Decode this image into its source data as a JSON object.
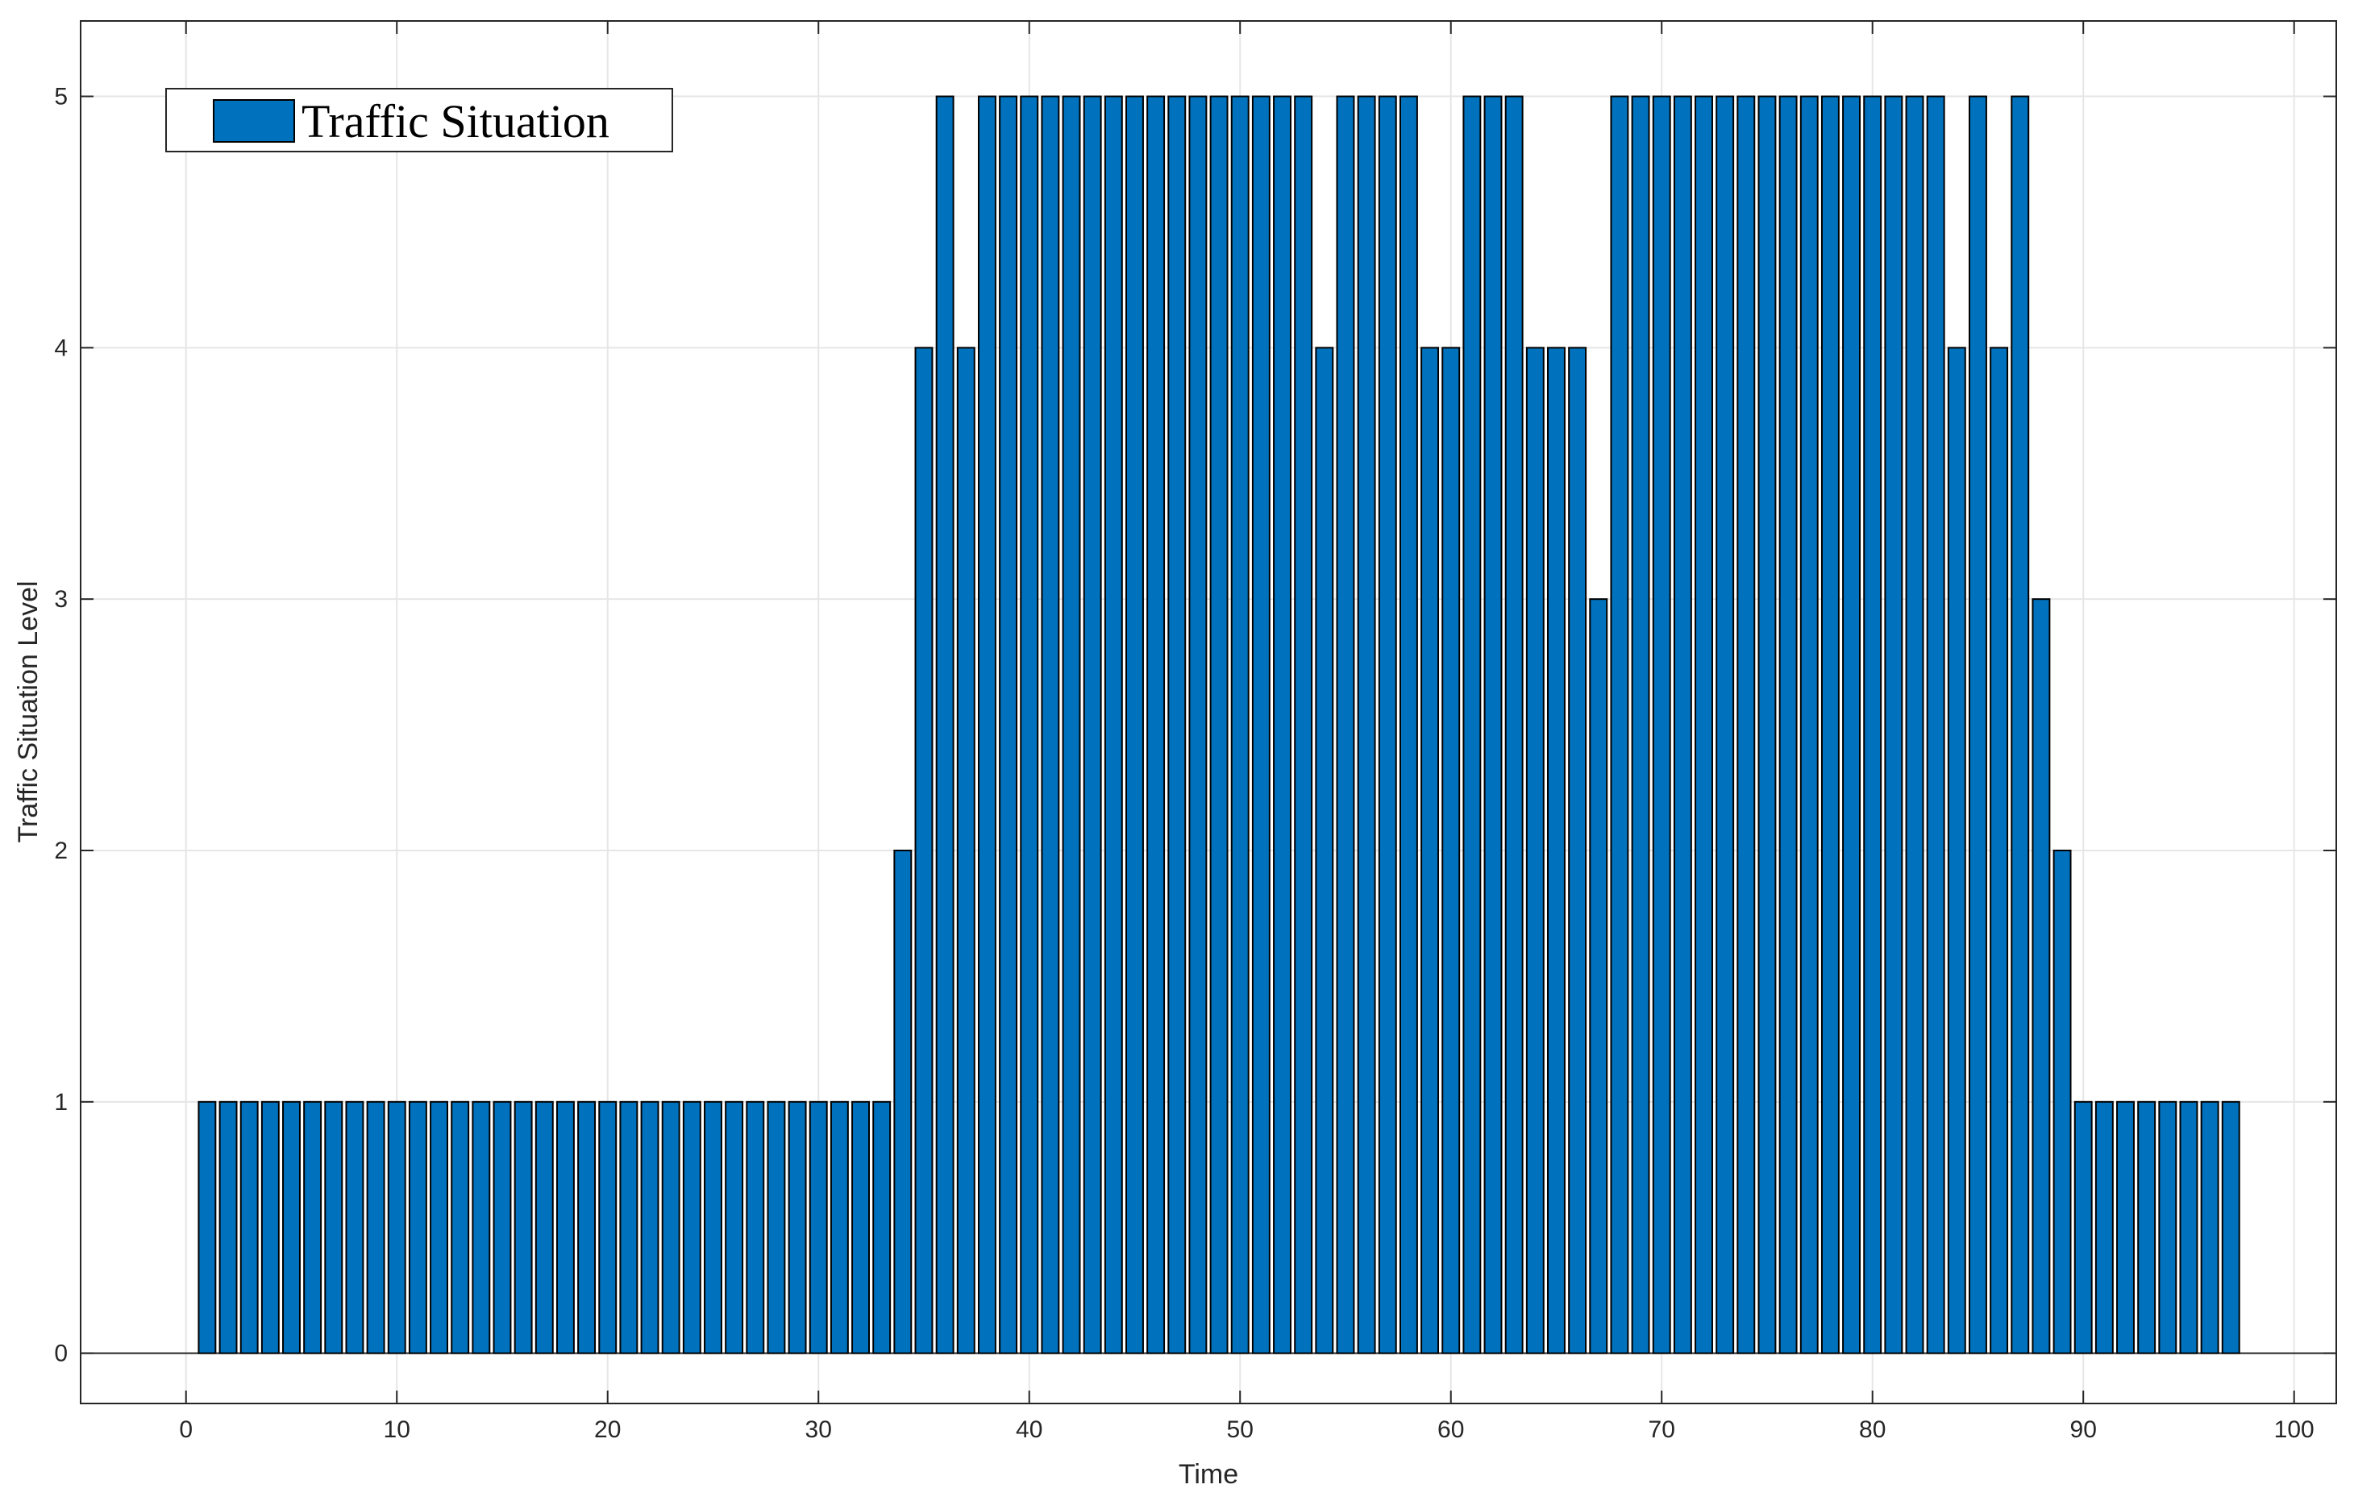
{
  "chart_data": {
    "type": "bar",
    "xlabel": "Time",
    "ylabel": "Traffic Situation Level",
    "xlim": [
      -5,
      102
    ],
    "ylim": [
      -0.2,
      5.3
    ],
    "xticks": [
      0,
      10,
      20,
      30,
      40,
      50,
      60,
      70,
      80,
      90,
      100
    ],
    "yticks": [
      0,
      1,
      2,
      3,
      4,
      5
    ],
    "grid": true,
    "legend": {
      "position": "top-left",
      "entries": [
        "Traffic Situation"
      ]
    },
    "series": [
      {
        "name": "Traffic Situation",
        "color": "#0072bd",
        "x": [
          1,
          2,
          3,
          4,
          5,
          6,
          7,
          8,
          9,
          10,
          11,
          12,
          13,
          14,
          15,
          16,
          17,
          18,
          19,
          20,
          21,
          22,
          23,
          24,
          25,
          26,
          27,
          28,
          29,
          30,
          31,
          32,
          33,
          34,
          35,
          36,
          37,
          38,
          39,
          40,
          41,
          42,
          43,
          44,
          45,
          46,
          47,
          48,
          49,
          50,
          51,
          52,
          53,
          54,
          55,
          56,
          57,
          58,
          59,
          60,
          61,
          62,
          63,
          64,
          65,
          66,
          67,
          68,
          69,
          70,
          71,
          72,
          73,
          74,
          75,
          76,
          77,
          78,
          79,
          80,
          81,
          82,
          83,
          84,
          85,
          86,
          87,
          88,
          89,
          90,
          91,
          92,
          93,
          94,
          95,
          96,
          97
        ],
        "values": [
          1,
          1,
          1,
          1,
          1,
          1,
          1,
          1,
          1,
          1,
          1,
          1,
          1,
          1,
          1,
          1,
          1,
          1,
          1,
          1,
          1,
          1,
          1,
          1,
          1,
          1,
          1,
          1,
          1,
          1,
          1,
          1,
          1,
          2,
          4,
          5,
          4,
          5,
          5,
          5,
          5,
          5,
          5,
          5,
          5,
          5,
          5,
          5,
          5,
          5,
          5,
          5,
          5,
          4,
          5,
          5,
          5,
          5,
          4,
          4,
          5,
          5,
          5,
          4,
          4,
          4,
          3,
          5,
          5,
          5,
          5,
          5,
          5,
          5,
          5,
          5,
          5,
          5,
          5,
          5,
          5,
          5,
          5,
          4,
          5,
          4,
          5,
          3,
          2,
          1,
          1,
          1,
          1,
          1,
          1,
          1,
          1
        ]
      }
    ]
  }
}
